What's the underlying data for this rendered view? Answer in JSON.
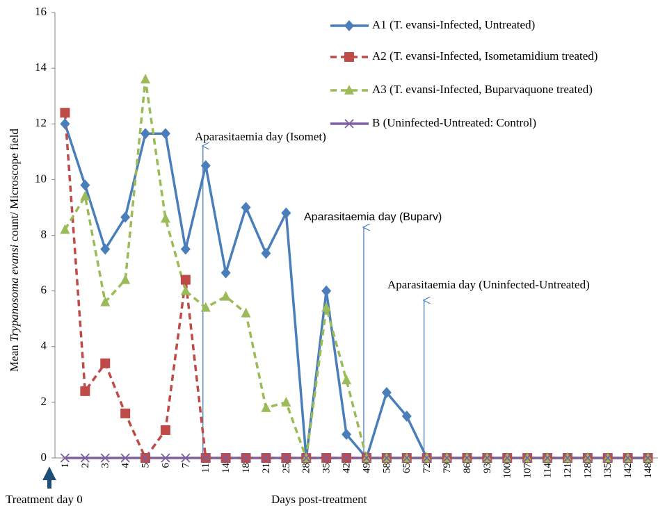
{
  "chart_data": {
    "type": "line",
    "y_label_parts": [
      "Mean ",
      "Trypanosoma evansi",
      " count/ Microscope  field"
    ],
    "x_label": "Days post-treatment",
    "start_note": "Treatment day 0",
    "annotations": [
      "Aparasitaemia day (Isomet)",
      "Aparasitaemia day (Buparv)",
      "Aparasitaemia day (Uninfected-Untreated)"
    ],
    "categories": [
      "1",
      "2",
      "3",
      "4",
      "5",
      "6",
      "7",
      "11",
      "14",
      "18",
      "21",
      "25",
      "28",
      "35",
      "42",
      "49",
      "58",
      "65",
      "72",
      "79",
      "86",
      "93",
      "100",
      "107",
      "114",
      "121",
      "128",
      "135",
      "142",
      "148"
    ],
    "series": [
      {
        "name": "A1 (T. evansi-Infected, Untreated)",
        "color": "#4a7ebb",
        "marker": "diamond",
        "dashed": false,
        "values": [
          12,
          9.8,
          7.5,
          8.65,
          11.65,
          11.65,
          7.5,
          10.5,
          6.65,
          9,
          7.35,
          8.8,
          0,
          6,
          0.85,
          0,
          2.35,
          1.5,
          0,
          0,
          0,
          0,
          0,
          0,
          0,
          0,
          0,
          0,
          0,
          0
        ]
      },
      {
        "name": "A2 (T. evansi-Infected, Isometamidium treated)",
        "color": "#be4b48",
        "marker": "square",
        "dashed": true,
        "values": [
          12.4,
          2.4,
          3.4,
          1.6,
          0,
          1,
          6.4,
          0,
          0,
          0,
          0,
          0,
          0,
          0,
          0,
          0,
          0,
          0,
          0,
          0,
          0,
          0,
          0,
          0,
          0,
          0,
          0,
          0,
          0,
          0
        ]
      },
      {
        "name": "A3 (T. evansi-Infected, Buparvaquone treated)",
        "color": "#9bbb59",
        "marker": "triangle",
        "dashed": true,
        "values": [
          8.2,
          9.4,
          5.6,
          6.4,
          13.6,
          8.6,
          6,
          5.4,
          5.8,
          5.2,
          1.8,
          2,
          0,
          5.4,
          2.8,
          0,
          0,
          0,
          0,
          0,
          0,
          0,
          0,
          0,
          0,
          0,
          0,
          0,
          0,
          0
        ]
      },
      {
        "name": "B (Uninfected-Untreated: Control)",
        "color": "#7d60a0",
        "marker": "x",
        "dashed": false,
        "values": [
          0,
          0,
          0,
          0,
          0,
          0,
          0,
          0,
          0,
          0,
          0,
          0,
          0,
          0,
          0,
          0,
          0,
          0,
          0,
          0,
          0,
          0,
          0,
          0,
          0,
          0,
          0,
          0,
          0,
          0
        ]
      }
    ],
    "ylim": [
      0,
      16
    ],
    "yticks": [
      0,
      2,
      4,
      6,
      8,
      10,
      12,
      14,
      16
    ],
    "grid": false,
    "legend": "top-right"
  }
}
